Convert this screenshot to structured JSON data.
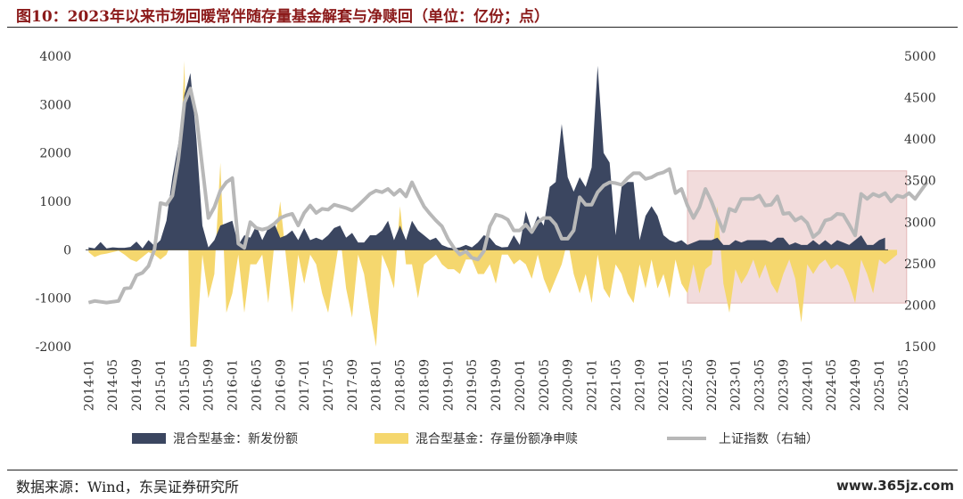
{
  "header": {
    "title": "图10：2023年以来市场回暖常伴随存量基金解套与净赎回（单位：亿份；点）"
  },
  "footer": {
    "source": "数据来源：Wind，东吴证券研究所",
    "watermark": "www.365jz.com"
  },
  "chart_data": {
    "type": "area",
    "title": "图10：2023年以来市场回暖常伴随存量基金解套与净赎回（单位：亿份；点）",
    "x_tick_labels": [
      "2014-01",
      "2014-05",
      "2014-09",
      "2015-01",
      "2015-05",
      "2015-09",
      "2016-01",
      "2016-05",
      "2016-09",
      "2017-01",
      "2017-05",
      "2017-09",
      "2018-01",
      "2018-05",
      "2018-09",
      "2019-01",
      "2019-05",
      "2019-09",
      "2020-01",
      "2020-05",
      "2020-09",
      "2021-01",
      "2021-05",
      "2021-09",
      "2022-01",
      "2022-05",
      "2022-09",
      "2023-01",
      "2023-05",
      "2023-09",
      "2024-01",
      "2024-05",
      "2024-09",
      "2025-01",
      "2025-05"
    ],
    "y_left_ticks": [
      4000,
      3000,
      2000,
      1000,
      0,
      -1000,
      -2000
    ],
    "y_right_ticks": [
      5000,
      4500,
      4000,
      3500,
      3000,
      2500,
      2000,
      1500
    ],
    "ylim_left": [
      -2000,
      4000
    ],
    "ylim_right": [
      1500,
      5000
    ],
    "highlight": {
      "from": "2022-05",
      "to": "2025-05",
      "ylim_left": [
        -1100,
        1630
      ],
      "color": "#f2dcdc"
    },
    "colors": {
      "new": "#3b4660",
      "net": "#f5d76e",
      "index": "#b8b8b8"
    },
    "series": [
      {
        "name": "混合型基金：新发份额",
        "axis": "left",
        "values": [
          50,
          30,
          160,
          30,
          50,
          40,
          40,
          60,
          170,
          30,
          200,
          80,
          200,
          600,
          1500,
          2200,
          3200,
          3650,
          2300,
          500,
          50,
          200,
          500,
          550,
          600,
          100,
          300,
          250,
          500,
          200,
          450,
          550,
          250,
          300,
          400,
          200,
          450,
          200,
          250,
          200,
          300,
          450,
          500,
          250,
          350,
          150,
          150,
          300,
          300,
          400,
          600,
          200,
          500,
          200,
          600,
          400,
          300,
          200,
          250,
          100,
          50,
          30,
          50,
          100,
          50,
          150,
          300,
          250,
          100,
          50,
          60,
          300,
          100,
          800,
          400,
          700,
          500,
          1300,
          1400,
          2600,
          1500,
          1200,
          1500,
          1300,
          1700,
          3800,
          2000,
          1800,
          300,
          1300,
          1400,
          1400,
          200,
          700,
          900,
          700,
          300,
          200,
          150,
          200,
          100,
          150,
          200,
          200,
          200,
          250,
          100,
          100,
          200,
          150,
          200,
          200,
          200,
          200,
          150,
          250,
          250,
          100,
          150,
          100,
          100,
          200,
          100,
          200,
          100,
          200,
          150,
          100,
          200,
          300,
          100,
          100,
          200,
          250
        ]
      },
      {
        "name": "混合型基金：存量份额净申赎",
        "axis": "left",
        "values": [
          -50,
          -150,
          -100,
          -80,
          -50,
          -20,
          -100,
          -200,
          -250,
          -150,
          -50,
          -100,
          -200,
          -100,
          200,
          1000,
          3900,
          -2000,
          -2000,
          -100,
          -1000,
          -500,
          1800,
          -1300,
          -900,
          -100,
          -1300,
          -300,
          -300,
          -100,
          -1100,
          100,
          1000,
          -200,
          -1300,
          -100,
          -700,
          -100,
          -300,
          -900,
          -1300,
          -500,
          300,
          -800,
          -1400,
          -100,
          -500,
          -1300,
          -2000,
          -100,
          -400,
          -800,
          900,
          -300,
          -300,
          -1000,
          -300,
          -200,
          -100,
          -300,
          -400,
          -400,
          -500,
          -200,
          -200,
          -500,
          -500,
          -300,
          -700,
          -100,
          -100,
          -300,
          -200,
          -300,
          -600,
          -100,
          -600,
          -900,
          -600,
          -300,
          200,
          -500,
          -900,
          -500,
          -1100,
          -100,
          -800,
          -1000,
          -300,
          -500,
          -900,
          -1100,
          -300,
          -800,
          -200,
          -800,
          -500,
          -1000,
          -200,
          -700,
          -900,
          -300,
          -900,
          -400,
          -300,
          900,
          -700,
          -1300,
          -400,
          -700,
          -500,
          -200,
          -600,
          -300,
          -700,
          -900,
          -500,
          -200,
          -600,
          -1500,
          -300,
          -500,
          -300,
          -200,
          -400,
          -300,
          -400,
          -700,
          -1100,
          -200,
          -500,
          -900,
          -200,
          -300,
          -200,
          -100
        ]
      },
      {
        "name": "上证指数（右轴）",
        "axis": "right",
        "values": [
          2030,
          2050,
          2040,
          2030,
          2040,
          2050,
          2200,
          2210,
          2360,
          2390,
          2470,
          2670,
          3230,
          3210,
          3320,
          3760,
          4440,
          4610,
          4280,
          3660,
          3050,
          3180,
          3380,
          3480,
          3530,
          2740,
          2690,
          3000,
          2930,
          2910,
          2930,
          2980,
          3050,
          3080,
          3100,
          2960,
          3110,
          3200,
          3110,
          3160,
          3150,
          3210,
          3190,
          3170,
          3140,
          3200,
          3270,
          3340,
          3380,
          3360,
          3400,
          3330,
          3390,
          3310,
          3480,
          3330,
          3190,
          3100,
          3020,
          2950,
          2800,
          2690,
          2610,
          2650,
          2570,
          2550,
          2650,
          2950,
          3090,
          3070,
          3030,
          2900,
          2900,
          2970,
          2880,
          3000,
          3050,
          3050,
          2970,
          2800,
          2800,
          2900,
          3300,
          3210,
          3210,
          3360,
          3440,
          3480,
          3470,
          3450,
          3530,
          3590,
          3590,
          3520,
          3540,
          3580,
          3600,
          3640,
          3350,
          3400,
          3200,
          3050,
          3180,
          3400,
          3250,
          3060,
          2890,
          3160,
          3130,
          3280,
          3280,
          3280,
          3320,
          3200,
          3210,
          3310,
          3100,
          3110,
          3020,
          3060,
          2990,
          2820,
          2880,
          3020,
          3040,
          3100,
          3090,
          2970,
          2840,
          3340,
          3280,
          3340,
          3310,
          3350,
          3250,
          3320,
          3300,
          3350,
          3280,
          3380,
          3480
        ]
      }
    ],
    "legend": [
      "混合型基金：新发份额",
      "混合型基金：存量份额净申赎",
      "上证指数（右轴）"
    ],
    "legend_position": "bottom",
    "grid": false
  }
}
